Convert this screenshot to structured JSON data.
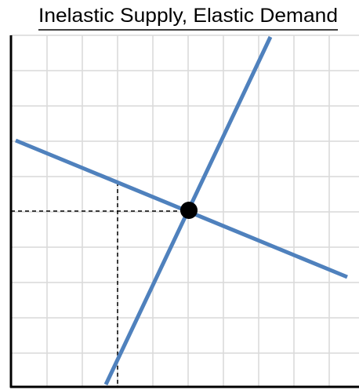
{
  "title": "Inelastic Supply, Elastic Demand"
}
